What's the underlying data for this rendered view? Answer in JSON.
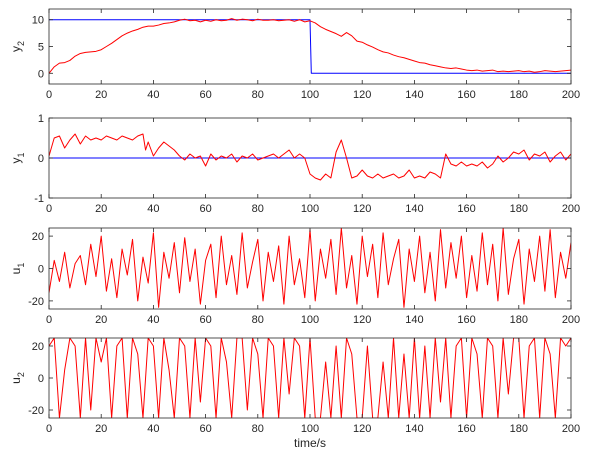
{
  "figure": {
    "xlabel": "time/s"
  },
  "colors": {
    "reference": "#0000ff",
    "output": "#ff0000",
    "frame": "#262626"
  },
  "chart_data": [
    {
      "type": "line",
      "ylabel": "y",
      "ylabel_sub": "2",
      "xlim": [
        0,
        200
      ],
      "ylim": [
        -2,
        12
      ],
      "xticks": [
        0,
        20,
        40,
        60,
        80,
        100,
        120,
        140,
        160,
        180,
        200
      ],
      "xtick_labels": [
        "0",
        "20",
        "40",
        "60",
        "80",
        "100",
        "120",
        "140",
        "160",
        "180",
        "200"
      ],
      "yticks": [
        0,
        5,
        10
      ],
      "ytick_labels": [
        "0",
        "5",
        "10"
      ],
      "series": [
        {
          "color": "#0000ff",
          "x": [
            0,
            100,
            100.5,
            200
          ],
          "y": [
            10,
            10,
            0,
            0
          ]
        },
        {
          "color": "#ff0000",
          "x": [
            0,
            2,
            4,
            6,
            8,
            10,
            12,
            14,
            16,
            18,
            20,
            22,
            24,
            26,
            28,
            30,
            32,
            34,
            36,
            38,
            40,
            42,
            44,
            46,
            48,
            50,
            52,
            54,
            56,
            58,
            60,
            62,
            64,
            66,
            68,
            70,
            72,
            74,
            76,
            78,
            80,
            82,
            84,
            86,
            88,
            90,
            92,
            94,
            96,
            98,
            100,
            102,
            104,
            106,
            108,
            110,
            112,
            114,
            116,
            118,
            120,
            122,
            124,
            126,
            128,
            130,
            132,
            134,
            136,
            138,
            140,
            142,
            144,
            146,
            148,
            150,
            152,
            154,
            156,
            158,
            160,
            162,
            164,
            166,
            168,
            170,
            172,
            174,
            176,
            178,
            180,
            182,
            184,
            186,
            188,
            190,
            192,
            194,
            196,
            198,
            200
          ],
          "y": [
            0,
            1.2,
            1.9,
            2.0,
            2.4,
            3.2,
            3.7,
            3.9,
            4.0,
            4.1,
            4.4,
            5.0,
            5.6,
            6.3,
            7.0,
            7.5,
            7.9,
            8.2,
            8.6,
            8.8,
            8.8,
            9.0,
            9.3,
            9.4,
            9.6,
            9.9,
            10.1,
            9.8,
            9.9,
            9.6,
            9.9,
            9.7,
            10.0,
            9.8,
            9.9,
            10.2,
            9.9,
            10.1,
            10.0,
            9.8,
            10.1,
            9.9,
            9.9,
            10.0,
            9.8,
            9.9,
            10.0,
            9.7,
            10.0,
            9.6,
            9.8,
            9.4,
            8.7,
            8.2,
            7.8,
            7.4,
            6.9,
            7.6,
            7.0,
            6.0,
            5.8,
            5.3,
            4.9,
            4.4,
            4.0,
            3.8,
            3.4,
            3.1,
            2.9,
            2.6,
            2.3,
            2.0,
            1.9,
            1.6,
            1.4,
            1.2,
            1.0,
            0.9,
            1.0,
            0.8,
            0.6,
            0.5,
            0.6,
            0.4,
            0.5,
            0.6,
            0.3,
            0.4,
            0.3,
            0.4,
            0.5,
            0.3,
            0.4,
            0.2,
            0.3,
            0.5,
            0.4,
            0.3,
            0.4,
            0.5,
            0.6
          ]
        }
      ]
    },
    {
      "type": "line",
      "ylabel": "y",
      "ylabel_sub": "1",
      "xlim": [
        0,
        200
      ],
      "ylim": [
        -1,
        1
      ],
      "xticks": [
        0,
        20,
        40,
        60,
        80,
        100,
        120,
        140,
        160,
        180,
        200
      ],
      "xtick_labels": [
        "0",
        "20",
        "40",
        "60",
        "80",
        "100",
        "120",
        "140",
        "160",
        "180",
        "200"
      ],
      "yticks": [
        -1,
        0,
        1
      ],
      "ytick_labels": [
        "-1",
        "0",
        "1"
      ],
      "series": [
        {
          "color": "#0000ff",
          "x": [
            0,
            200
          ],
          "y": [
            0,
            0
          ]
        },
        {
          "color": "#ff0000",
          "x": [
            0,
            2,
            4,
            6,
            8,
            10,
            12,
            14,
            16,
            18,
            20,
            22,
            24,
            26,
            28,
            30,
            32,
            34,
            36,
            37,
            38,
            40,
            42,
            44,
            46,
            48,
            50,
            52,
            54,
            56,
            58,
            60,
            62,
            64,
            66,
            68,
            70,
            72,
            74,
            76,
            78,
            80,
            82,
            84,
            86,
            88,
            90,
            92,
            94,
            96,
            98,
            100,
            102,
            104,
            106,
            108,
            110,
            112,
            114,
            116,
            118,
            120,
            122,
            124,
            126,
            128,
            130,
            132,
            134,
            136,
            138,
            140,
            142,
            144,
            146,
            148,
            150,
            152,
            154,
            156,
            158,
            160,
            162,
            164,
            166,
            168,
            170,
            172,
            174,
            176,
            178,
            180,
            182,
            184,
            186,
            188,
            190,
            192,
            194,
            196,
            198,
            200
          ],
          "y": [
            0.05,
            0.5,
            0.55,
            0.25,
            0.45,
            0.6,
            0.35,
            0.55,
            0.45,
            0.5,
            0.45,
            0.55,
            0.5,
            0.45,
            0.55,
            0.5,
            0.45,
            0.55,
            0.6,
            0.2,
            0.4,
            0.05,
            0.25,
            0.4,
            0.3,
            0.2,
            0.05,
            -0.05,
            0.1,
            0.0,
            0.05,
            -0.2,
            0.1,
            -0.05,
            0.05,
            0.0,
            0.1,
            -0.1,
            0.05,
            0.0,
            0.1,
            -0.05,
            0.0,
            0.05,
            0.1,
            0.0,
            0.1,
            0.2,
            0.0,
            0.1,
            0.0,
            -0.4,
            -0.5,
            -0.55,
            -0.4,
            -0.5,
            0.15,
            0.45,
            0.0,
            -0.5,
            -0.45,
            -0.3,
            -0.45,
            -0.5,
            -0.4,
            -0.5,
            -0.45,
            -0.4,
            -0.5,
            -0.45,
            -0.3,
            -0.5,
            -0.45,
            -0.5,
            -0.35,
            -0.4,
            -0.5,
            0.1,
            -0.15,
            -0.2,
            -0.1,
            -0.2,
            -0.15,
            -0.2,
            -0.1,
            -0.25,
            -0.15,
            0.05,
            -0.1,
            0.0,
            0.15,
            0.1,
            0.2,
            -0.05,
            0.1,
            0.05,
            0.15,
            -0.1,
            0.05,
            0.15,
            -0.05,
            0.1
          ]
        }
      ]
    },
    {
      "type": "line",
      "ylabel": "u",
      "ylabel_sub": "1",
      "xlim": [
        0,
        200
      ],
      "ylim": [
        -25,
        25
      ],
      "xticks": [
        0,
        20,
        40,
        60,
        80,
        100,
        120,
        140,
        160,
        180,
        200
      ],
      "xtick_labels": [
        "0",
        "20",
        "40",
        "60",
        "80",
        "100",
        "120",
        "140",
        "160",
        "180",
        "200"
      ],
      "yticks": [
        -20,
        0,
        20
      ],
      "ytick_labels": [
        "-20",
        "0",
        "20"
      ],
      "series": [
        {
          "color": "#ff0000",
          "x": [
            0,
            2,
            4,
            6,
            8,
            10,
            12,
            14,
            16,
            18,
            20,
            22,
            24,
            26,
            28,
            30,
            32,
            34,
            36,
            38,
            40,
            42,
            44,
            46,
            48,
            50,
            52,
            54,
            56,
            58,
            60,
            62,
            64,
            66,
            68,
            70,
            72,
            74,
            76,
            78,
            80,
            82,
            84,
            86,
            88,
            90,
            92,
            94,
            96,
            98,
            100,
            102,
            104,
            106,
            108,
            110,
            112,
            114,
            116,
            118,
            120,
            122,
            124,
            126,
            128,
            130,
            132,
            134,
            136,
            138,
            140,
            142,
            144,
            146,
            148,
            150,
            152,
            154,
            156,
            158,
            160,
            162,
            164,
            166,
            168,
            170,
            172,
            174,
            176,
            178,
            180,
            182,
            184,
            186,
            188,
            190,
            192,
            194,
            196,
            198,
            200
          ],
          "y": [
            -15,
            5,
            -8,
            10,
            -12,
            3,
            8,
            -10,
            15,
            -5,
            20,
            -14,
            6,
            -18,
            12,
            -4,
            18,
            -20,
            7,
            -9,
            22,
            -24,
            10,
            -6,
            16,
            -15,
            19,
            -8,
            12,
            -22,
            5,
            15,
            -18,
            20,
            -10,
            8,
            -16,
            22,
            -12,
            4,
            18,
            -20,
            10,
            -8,
            14,
            -22,
            20,
            -10,
            6,
            -18,
            24,
            -20,
            12,
            -6,
            18,
            -16,
            25,
            -12,
            8,
            -22,
            20,
            -5,
            15,
            -18,
            22,
            -10,
            6,
            18,
            -24,
            12,
            -8,
            20,
            -15,
            10,
            -20,
            24,
            -12,
            16,
            -6,
            20,
            -18,
            8,
            -14,
            22,
            -10,
            15,
            -20,
            25,
            -16,
            6,
            18,
            -22,
            12,
            -8,
            20,
            -14,
            24,
            -18,
            10,
            -6,
            16
          ]
        }
      ]
    },
    {
      "type": "line",
      "ylabel": "u",
      "ylabel_sub": "2",
      "xlabel": "time/s",
      "xlim": [
        0,
        200
      ],
      "ylim": [
        -25,
        25
      ],
      "xticks": [
        0,
        20,
        40,
        60,
        80,
        100,
        120,
        140,
        160,
        180,
        200
      ],
      "xtick_labels": [
        "0",
        "20",
        "40",
        "60",
        "80",
        "100",
        "120",
        "140",
        "160",
        "180",
        "200"
      ],
      "yticks": [
        -20,
        0,
        20
      ],
      "ytick_labels": [
        "-20",
        "0",
        "20"
      ],
      "series": [
        {
          "color": "#ff0000",
          "x": [
            0,
            2,
            4,
            6,
            8,
            10,
            12,
            14,
            16,
            18,
            20,
            22,
            24,
            26,
            28,
            30,
            32,
            34,
            36,
            38,
            40,
            42,
            44,
            46,
            48,
            50,
            52,
            54,
            56,
            58,
            60,
            62,
            64,
            66,
            68,
            70,
            72,
            74,
            76,
            78,
            80,
            82,
            84,
            86,
            88,
            90,
            92,
            94,
            96,
            98,
            100,
            102,
            104,
            106,
            108,
            110,
            112,
            114,
            116,
            118,
            120,
            122,
            124,
            126,
            128,
            130,
            132,
            134,
            136,
            138,
            140,
            142,
            144,
            146,
            148,
            150,
            152,
            154,
            156,
            158,
            160,
            162,
            164,
            166,
            168,
            170,
            172,
            174,
            176,
            178,
            180,
            182,
            184,
            186,
            188,
            190,
            192,
            194,
            196,
            198,
            200
          ],
          "y": [
            20,
            25,
            -25,
            5,
            25,
            20,
            -25,
            25,
            -20,
            25,
            10,
            25,
            -25,
            20,
            25,
            -25,
            25,
            15,
            -25,
            25,
            20,
            -25,
            25,
            5,
            -25,
            25,
            20,
            -25,
            25,
            -15,
            25,
            20,
            -25,
            25,
            10,
            -25,
            25,
            25,
            -20,
            25,
            15,
            -25,
            25,
            20,
            -25,
            25,
            -10,
            25,
            20,
            -25,
            25,
            -25,
            -25,
            10,
            -25,
            20,
            -25,
            25,
            15,
            -25,
            -25,
            20,
            -25,
            -25,
            10,
            -25,
            25,
            -25,
            15,
            -25,
            25,
            -25,
            20,
            -25,
            25,
            -15,
            25,
            -25,
            20,
            25,
            -25,
            25,
            15,
            -25,
            25,
            20,
            -25,
            25,
            -10,
            25,
            25,
            -25,
            20,
            25,
            -25,
            25,
            15,
            -25,
            25,
            20,
            25
          ]
        }
      ]
    }
  ]
}
